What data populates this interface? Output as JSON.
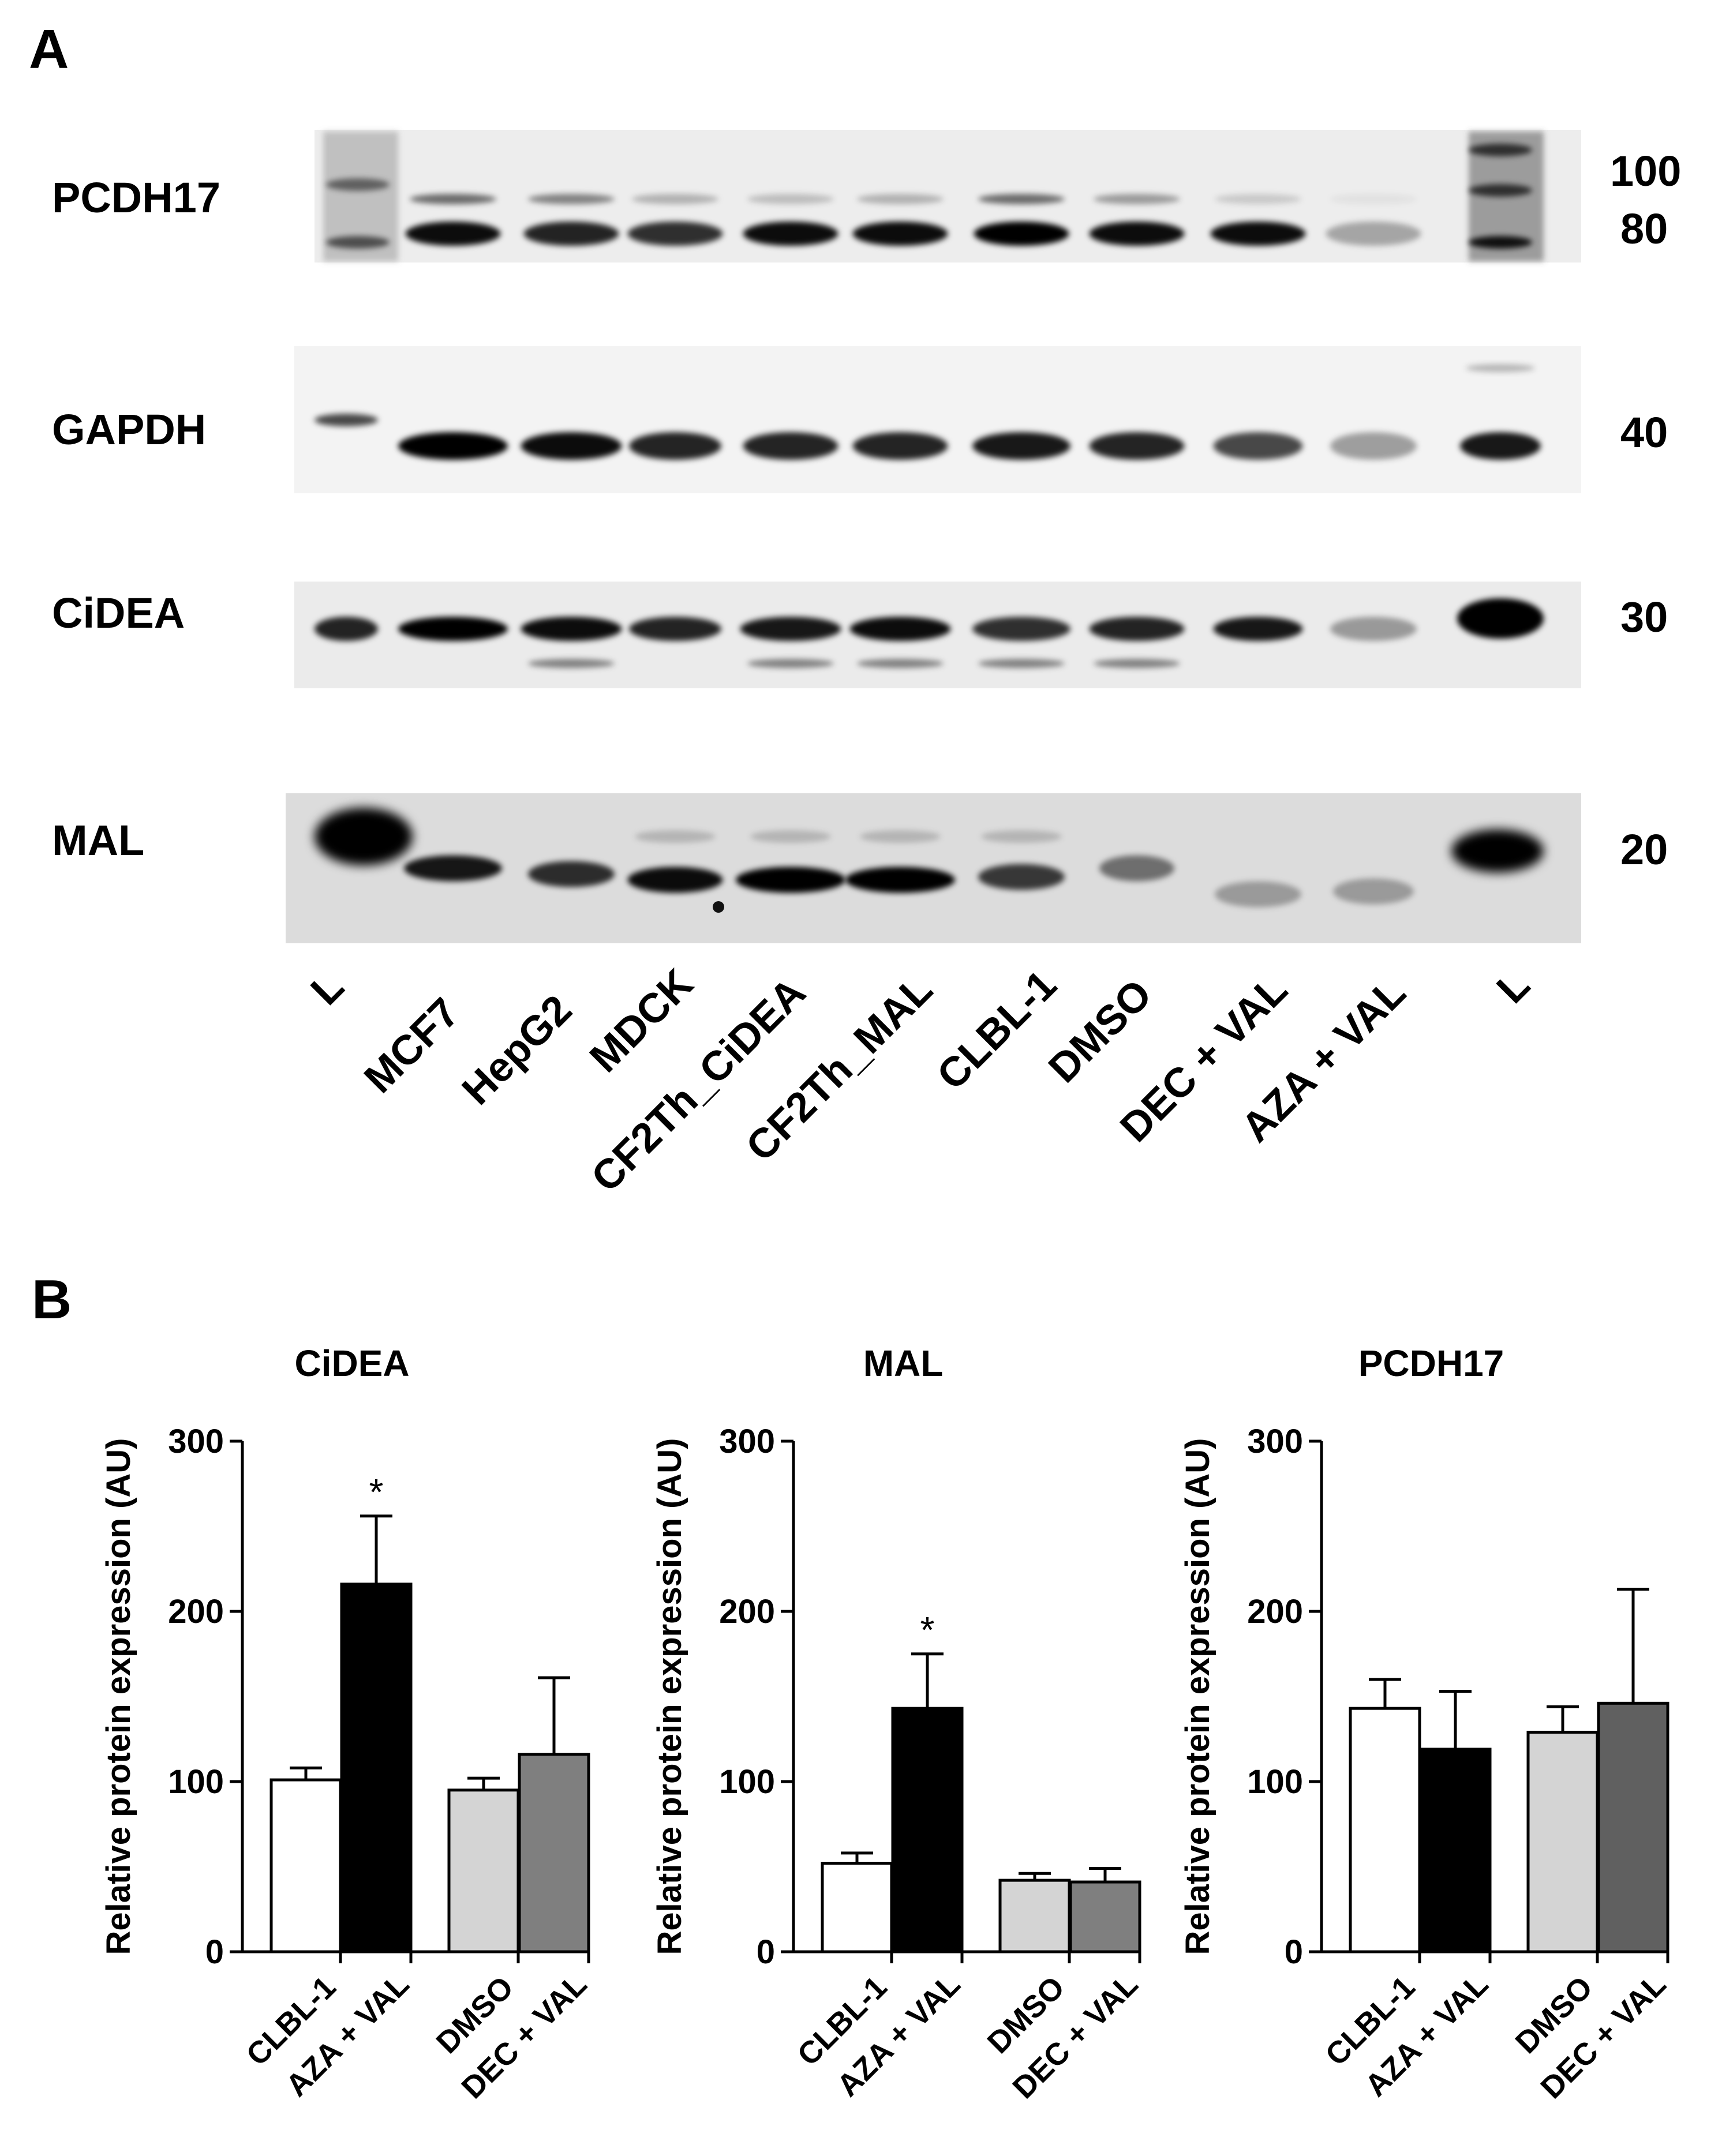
{
  "panel_a": {
    "label": "A",
    "lanes": [
      "L",
      "MCF7",
      "HepG2",
      "MDCK",
      "CF2Th_CiDEA",
      "CF2Th_MAL",
      "CLBL-1",
      "DMSO",
      "DEC + VAL",
      "AZA + VAL",
      "L"
    ],
    "blots": [
      {
        "name": "PCDH17",
        "markers": [
          "100",
          "80"
        ]
      },
      {
        "name": "GAPDH",
        "markers": [
          "40"
        ]
      },
      {
        "name": "CiDEA",
        "markers": [
          "30"
        ]
      },
      {
        "name": "MAL",
        "markers": [
          "20"
        ]
      }
    ]
  },
  "panel_b": {
    "label": "B"
  },
  "colors": {
    "CLBL-1": "#ffffff",
    "AZA + VAL": "#000000",
    "DMSO": "#d4d4d4",
    "DEC + VAL": "#7f7f7f",
    "DEC + VAL (PCDH17)": "#606060"
  },
  "chart_data": [
    {
      "type": "bar",
      "title": "CiDEA",
      "ylabel": "Relative protein expression (AU)",
      "ylim": [
        0,
        300
      ],
      "yticks": [
        "0",
        "100",
        "200",
        "300"
      ],
      "categories": [
        "CLBL-1",
        "AZA + VAL",
        "DMSO",
        "DEC + VAL"
      ],
      "values": [
        101,
        216,
        95,
        116
      ],
      "errors": [
        7,
        40,
        7,
        45
      ],
      "significance": [
        "",
        "*",
        "",
        ""
      ]
    },
    {
      "type": "bar",
      "title": "MAL",
      "ylabel": "Relative protein expression (AU)",
      "ylim": [
        0,
        300
      ],
      "yticks": [
        "0",
        "100",
        "200",
        "300"
      ],
      "categories": [
        "CLBL-1",
        "AZA + VAL",
        "DMSO",
        "DEC + VAL"
      ],
      "values": [
        52,
        143,
        42,
        41
      ],
      "errors": [
        6,
        32,
        4,
        8
      ],
      "significance": [
        "",
        "*",
        "",
        ""
      ]
    },
    {
      "type": "bar",
      "title": "PCDH17",
      "ylabel": "Relative protein expression (AU)",
      "ylim": [
        0,
        300
      ],
      "yticks": [
        "0",
        "100",
        "200",
        "300"
      ],
      "categories": [
        "CLBL-1",
        "AZA + VAL",
        "DMSO",
        "DEC + VAL"
      ],
      "values": [
        143,
        119,
        129,
        146
      ],
      "errors": [
        17,
        34,
        15,
        67
      ],
      "significance": [
        "",
        "",
        "",
        ""
      ]
    }
  ]
}
